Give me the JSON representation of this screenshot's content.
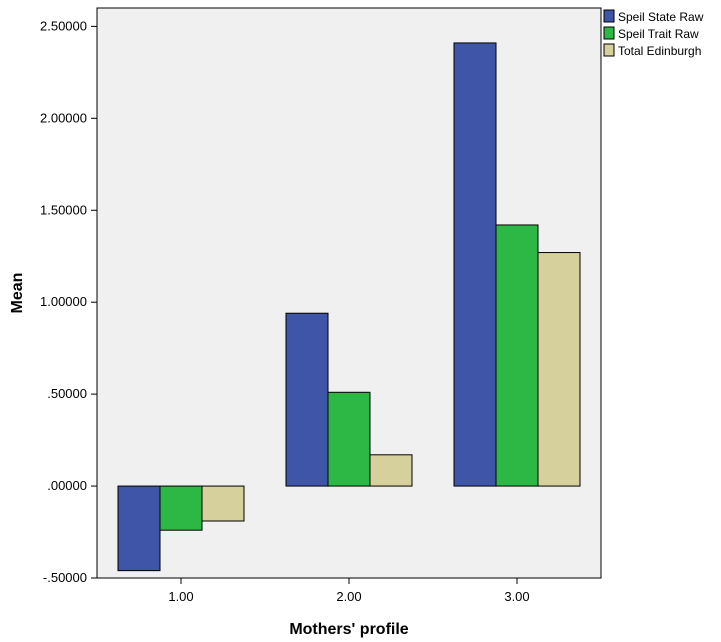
{
  "chart_data": {
    "type": "bar",
    "xlabel": "Mothers' profile",
    "ylabel": "Mean",
    "categories": [
      "1.00",
      "2.00",
      "3.00"
    ],
    "series": [
      {
        "name": "Speil State Raw",
        "values": [
          -0.46,
          0.94,
          2.41
        ],
        "color": "#3f56a8"
      },
      {
        "name": "Speil Trait Raw",
        "values": [
          -0.24,
          0.51,
          1.42
        ],
        "color": "#2db846"
      },
      {
        "name": "Total Edinburgh",
        "values": [
          -0.19,
          0.17,
          1.27
        ],
        "color": "#d6d19c"
      }
    ],
    "ylim": [
      -0.5,
      2.6
    ],
    "yticks": [
      {
        "value": -0.5,
        "label": "-.50000"
      },
      {
        "value": 0.0,
        "label": ".00000"
      },
      {
        "value": 0.5,
        "label": ".50000"
      },
      {
        "value": 1.0,
        "label": "1.00000"
      },
      {
        "value": 1.5,
        "label": "1.50000"
      },
      {
        "value": 2.0,
        "label": "2.00000"
      },
      {
        "value": 2.5,
        "label": "2.50000"
      }
    ],
    "grid": false,
    "legend_position": "top-right",
    "plot_background": "#f0f0f0"
  }
}
